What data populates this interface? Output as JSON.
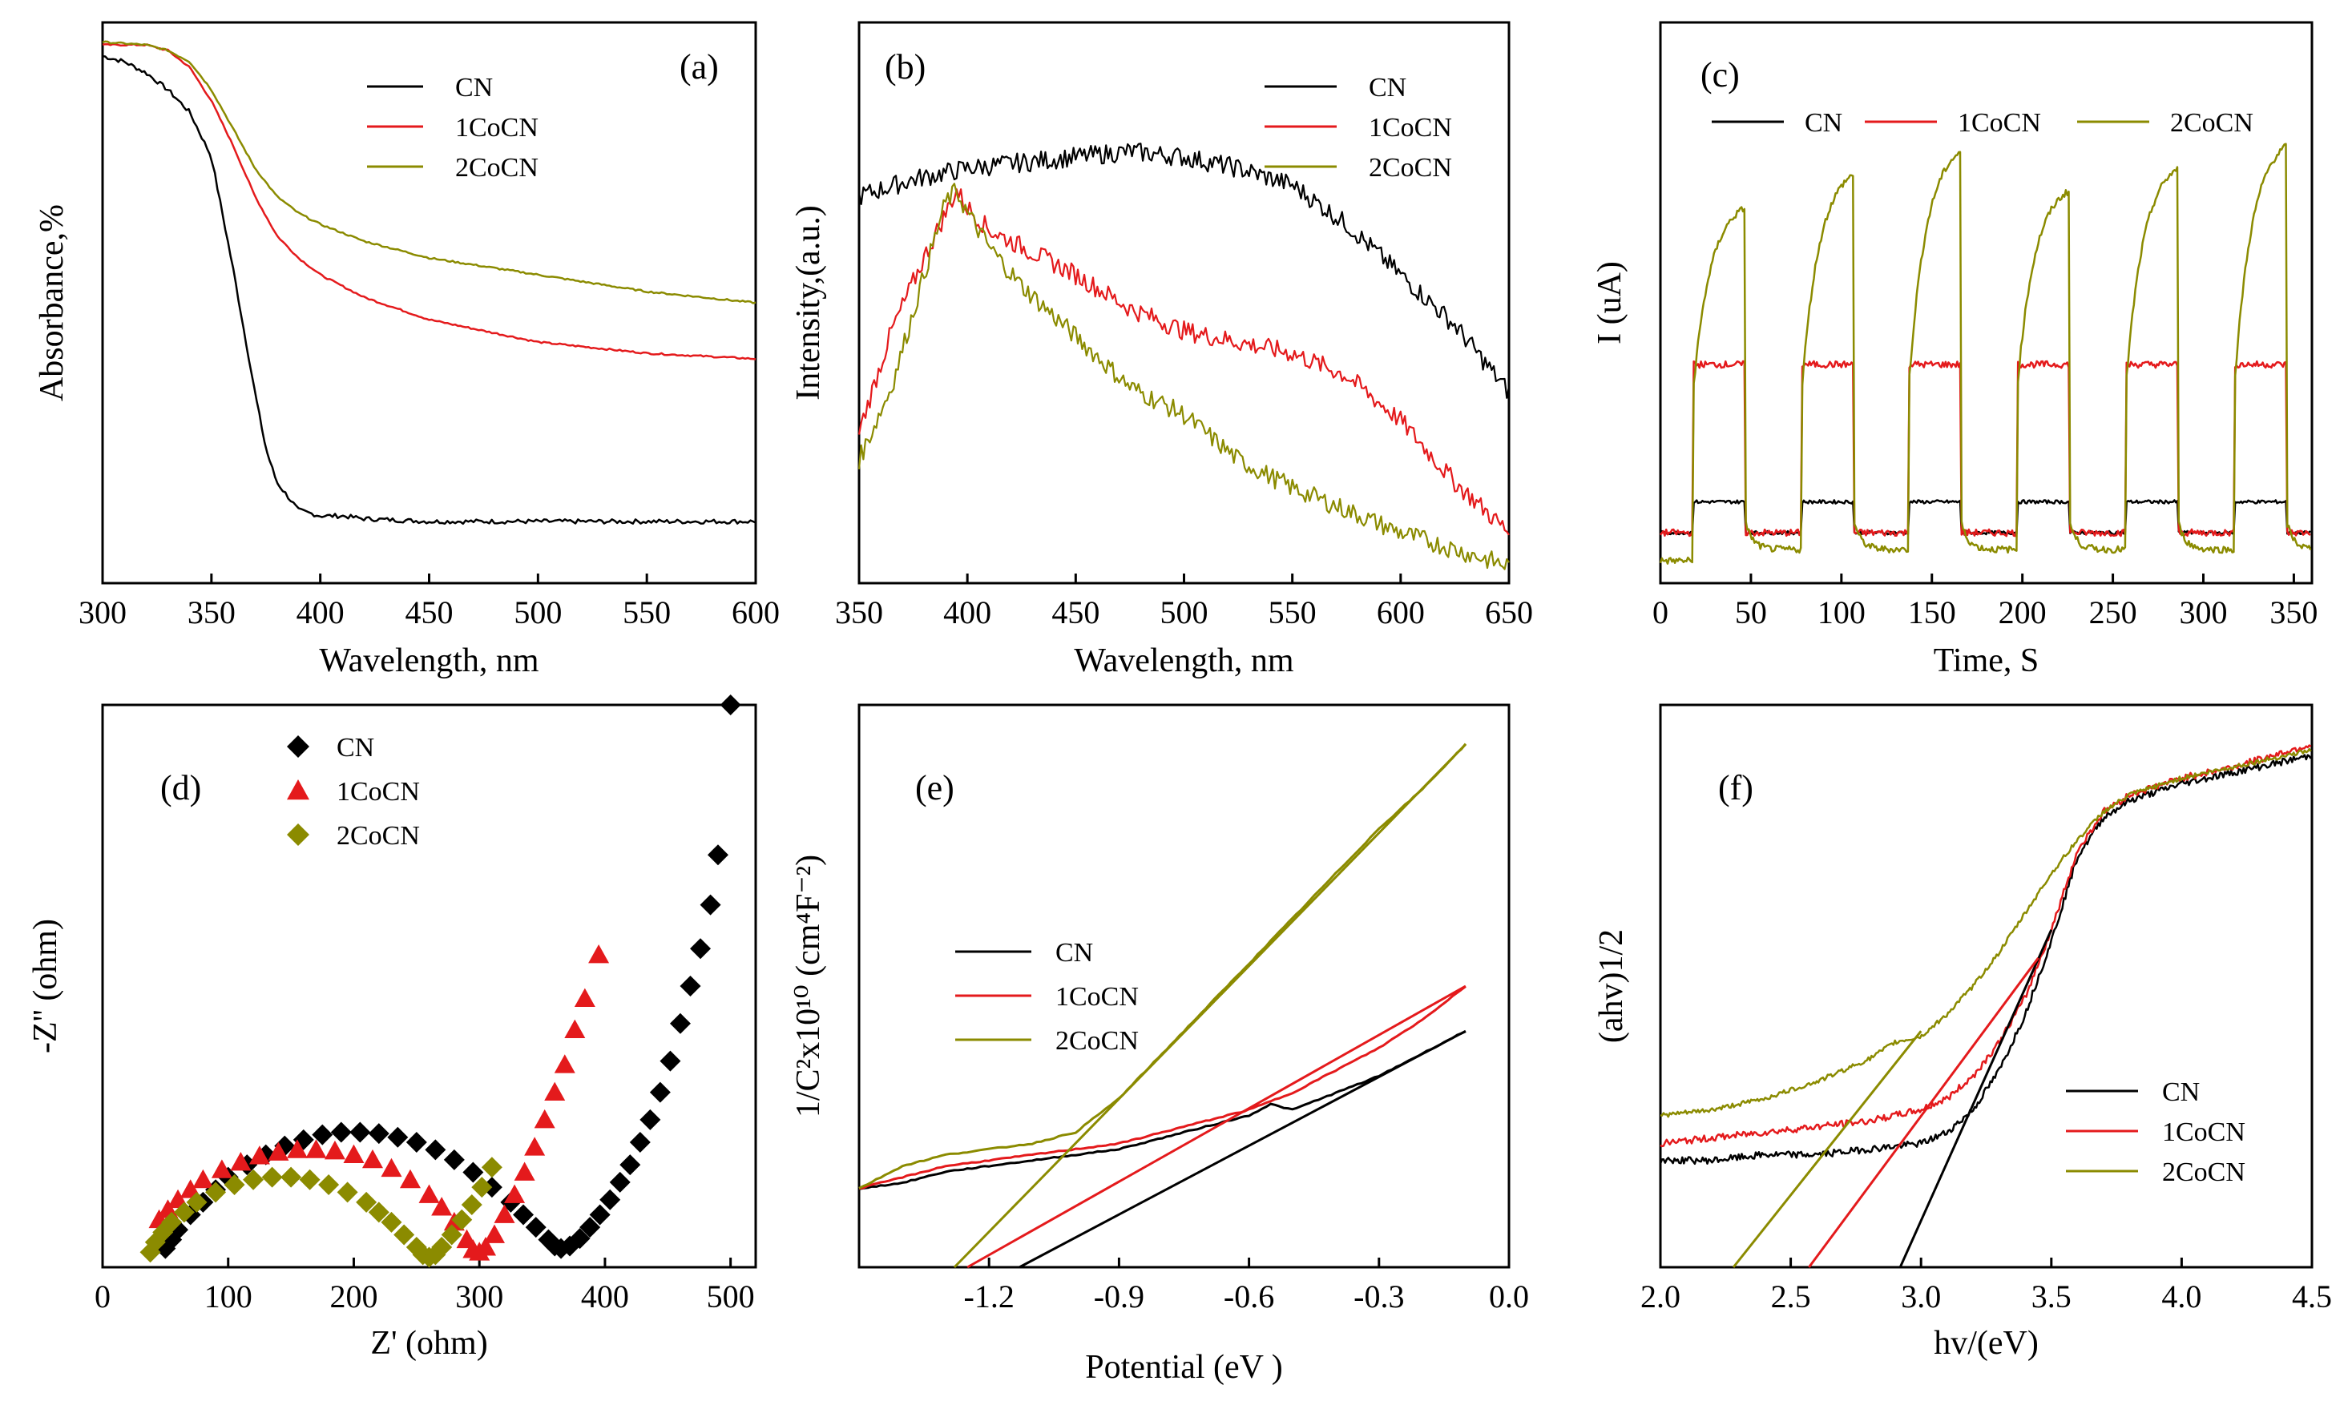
{
  "figure": {
    "description_hidden": false
  },
  "colors": {
    "CN": "#000000",
    "1CoCN": "#e41a1c",
    "2CoCN": "#8b8b00"
  },
  "chart_data": [
    {
      "panel": "(a)",
      "type": "line",
      "xlabel": "Wavelength, nm",
      "ylabel": "Absorbance,%",
      "xlim": [
        300,
        600
      ],
      "ylim": [
        0,
        1.0
      ],
      "xticks": [
        300,
        350,
        400,
        450,
        500,
        550,
        600
      ],
      "legend": [
        "CN",
        "1CoCN",
        "2CoCN"
      ],
      "legend_position": "top-right",
      "series": [
        {
          "name": "CN",
          "x": [
            300,
            310,
            320,
            330,
            340,
            350,
            355,
            360,
            365,
            370,
            375,
            380,
            390,
            400,
            410,
            420,
            450,
            500,
            550,
            600
          ],
          "y": [
            0.94,
            0.93,
            0.91,
            0.88,
            0.84,
            0.76,
            0.66,
            0.56,
            0.45,
            0.34,
            0.24,
            0.18,
            0.13,
            0.12,
            0.12,
            0.115,
            0.11,
            0.11,
            0.11,
            0.11
          ]
        },
        {
          "name": "1CoCN",
          "x": [
            300,
            320,
            330,
            340,
            350,
            360,
            370,
            380,
            390,
            400,
            420,
            450,
            500,
            550,
            600
          ],
          "y": [
            0.96,
            0.96,
            0.95,
            0.92,
            0.86,
            0.78,
            0.69,
            0.62,
            0.58,
            0.55,
            0.51,
            0.47,
            0.43,
            0.41,
            0.4
          ]
        },
        {
          "name": "2CoCN",
          "x": [
            300,
            320,
            330,
            340,
            350,
            360,
            370,
            380,
            390,
            400,
            420,
            450,
            500,
            550,
            600
          ],
          "y": [
            0.965,
            0.96,
            0.95,
            0.93,
            0.88,
            0.81,
            0.74,
            0.69,
            0.66,
            0.64,
            0.61,
            0.58,
            0.55,
            0.52,
            0.5
          ]
        }
      ]
    },
    {
      "panel": "(b)",
      "type": "line",
      "xlabel": "Wavelength, nm",
      "ylabel": "Intensity,(a.u.)",
      "xlim": [
        350,
        650
      ],
      "ylim": [
        0,
        1.0
      ],
      "xticks": [
        350,
        400,
        450,
        500,
        550,
        600,
        650
      ],
      "legend": [
        "CN",
        "1CoCN",
        "2CoCN"
      ],
      "legend_position": "top-right",
      "series": [
        {
          "name": "CN",
          "x": [
            350,
            375,
            400,
            425,
            450,
            475,
            500,
            525,
            550,
            575,
            600,
            625,
            650
          ],
          "y": [
            0.69,
            0.72,
            0.74,
            0.75,
            0.76,
            0.77,
            0.76,
            0.74,
            0.71,
            0.64,
            0.55,
            0.46,
            0.34
          ]
        },
        {
          "name": "1CoCN",
          "x": [
            350,
            365,
            380,
            390,
            395,
            400,
            410,
            425,
            450,
            475,
            500,
            525,
            550,
            575,
            600,
            625,
            650
          ],
          "y": [
            0.27,
            0.45,
            0.58,
            0.66,
            0.7,
            0.67,
            0.63,
            0.6,
            0.55,
            0.49,
            0.45,
            0.43,
            0.41,
            0.37,
            0.29,
            0.18,
            0.09
          ]
        },
        {
          "name": "2CoCN",
          "x": [
            350,
            365,
            380,
            390,
            395,
            400,
            410,
            425,
            450,
            475,
            500,
            525,
            550,
            575,
            600,
            625,
            650
          ],
          "y": [
            0.22,
            0.35,
            0.55,
            0.68,
            0.7,
            0.66,
            0.6,
            0.53,
            0.44,
            0.35,
            0.3,
            0.22,
            0.17,
            0.13,
            0.09,
            0.06,
            0.03
          ]
        }
      ]
    },
    {
      "panel": "(c)",
      "type": "line",
      "xlabel": "Time, S",
      "ylabel": "I (uA)",
      "xlim": [
        0,
        360
      ],
      "ylim": [
        0,
        1.0
      ],
      "xticks": [
        0,
        50,
        100,
        150,
        200,
        250,
        300,
        350
      ],
      "legend": [
        "CN",
        "1CoCN",
        "2CoCN"
      ],
      "legend_position": "top",
      "pulses_on": [
        [
          18,
          47
        ],
        [
          78,
          107
        ],
        [
          137,
          166
        ],
        [
          197,
          226
        ],
        [
          257,
          286
        ],
        [
          317,
          346
        ]
      ],
      "series": [
        {
          "name": "CN",
          "dark": 0.09,
          "light": 0.145
        },
        {
          "name": "1CoCN",
          "dark": 0.09,
          "light": 0.39
        },
        {
          "name": "2CoCN",
          "dark": 0.04,
          "light_peaks": [
            0.67,
            0.73,
            0.77,
            0.7,
            0.74,
            0.78
          ]
        }
      ]
    },
    {
      "panel": "(d)",
      "type": "scatter",
      "xlabel": "Z' (ohm)",
      "ylabel": "-Z'' (ohm)",
      "xlim": [
        0,
        520
      ],
      "ylim": [
        0,
        450
      ],
      "xticks": [
        0,
        100,
        200,
        300,
        400,
        500
      ],
      "legend": [
        "CN",
        "1CoCN",
        "2CoCN"
      ],
      "legend_position": "top-left",
      "series": [
        {
          "name": "CN",
          "marker": "diamond",
          "x": [
            50,
            55,
            60,
            70,
            80,
            90,
            100,
            115,
            130,
            145,
            160,
            175,
            190,
            205,
            220,
            235,
            250,
            265,
            280,
            295,
            310,
            325,
            335,
            345,
            355,
            360,
            365,
            372,
            380,
            388,
            396,
            404,
            412,
            420,
            428,
            436,
            444,
            452,
            460,
            468,
            476,
            484,
            490,
            500
          ],
          "y": [
            15,
            22,
            30,
            42,
            52,
            62,
            72,
            82,
            90,
            97,
            102,
            106,
            108,
            108,
            107,
            104,
            100,
            94,
            86,
            76,
            64,
            52,
            42,
            32,
            22,
            17,
            15,
            17,
            23,
            32,
            42,
            54,
            68,
            82,
            100,
            118,
            140,
            165,
            195,
            225,
            255,
            290,
            330,
            450
          ]
        },
        {
          "name": "1CoCN",
          "marker": "triangle",
          "x": [
            45,
            52,
            60,
            70,
            80,
            95,
            110,
            125,
            140,
            155,
            170,
            185,
            200,
            215,
            230,
            245,
            260,
            270,
            280,
            290,
            295,
            300,
            305,
            312,
            320,
            328,
            336,
            344,
            352,
            360,
            368,
            376,
            384,
            395
          ],
          "y": [
            38,
            46,
            54,
            62,
            70,
            78,
            84,
            89,
            92,
            94,
            94,
            93,
            90,
            86,
            79,
            70,
            58,
            48,
            36,
            22,
            14,
            12,
            16,
            26,
            42,
            58,
            76,
            96,
            118,
            140,
            162,
            190,
            215,
            250
          ]
        },
        {
          "name": "2CoCN",
          "marker": "diamond",
          "x": [
            38,
            42,
            48,
            55,
            65,
            75,
            90,
            105,
            120,
            135,
            150,
            165,
            180,
            195,
            210,
            220,
            230,
            240,
            250,
            255,
            260,
            265,
            270,
            278,
            286,
            294,
            302,
            310
          ],
          "y": [
            12,
            20,
            28,
            36,
            44,
            52,
            60,
            66,
            70,
            72,
            72,
            70,
            66,
            60,
            52,
            44,
            36,
            26,
            16,
            10,
            8,
            10,
            16,
            26,
            38,
            50,
            64,
            80
          ]
        }
      ]
    },
    {
      "panel": "(e)",
      "type": "line",
      "xlabel": "Potential (eV )",
      "ylabel": "1/C²x10¹⁰ (cm⁴F⁻²)",
      "xlim": [
        -1.5,
        0.0
      ],
      "ylim": [
        0,
        1.0
      ],
      "xticks": [
        -1.2,
        -0.9,
        -0.6,
        -0.3,
        0.0
      ],
      "xticklabels": [
        "-1.2",
        "-0.9",
        "-0.6",
        "-0.3",
        "0.0"
      ],
      "legend": [
        "CN",
        "1CoCN",
        "2CoCN"
      ],
      "legend_position": "center-left",
      "series": [
        {
          "name": "CN",
          "x": [
            -1.5,
            -1.4,
            -1.3,
            -1.2,
            -1.1,
            -1.0,
            -0.9,
            -0.8,
            -0.7,
            -0.6,
            -0.55,
            -0.5,
            -0.4,
            -0.3,
            -0.2,
            -0.1
          ],
          "y": [
            0.14,
            0.15,
            0.17,
            0.18,
            0.19,
            0.2,
            0.21,
            0.23,
            0.25,
            0.27,
            0.29,
            0.28,
            0.31,
            0.34,
            0.38,
            0.42
          ]
        },
        {
          "name": "1CoCN",
          "x": [
            -1.5,
            -1.4,
            -1.3,
            -1.2,
            -1.1,
            -1.0,
            -0.9,
            -0.8,
            -0.7,
            -0.6,
            -0.5,
            -0.4,
            -0.3,
            -0.2,
            -0.1
          ],
          "y": [
            0.14,
            0.16,
            0.18,
            0.19,
            0.2,
            0.21,
            0.22,
            0.24,
            0.26,
            0.28,
            0.31,
            0.35,
            0.39,
            0.44,
            0.5
          ]
        },
        {
          "name": "2CoCN",
          "x": [
            -1.5,
            -1.4,
            -1.3,
            -1.2,
            -1.1,
            -1.0,
            -0.9,
            -0.8,
            -0.7,
            -0.6,
            -0.5,
            -0.4,
            -0.3,
            -0.2,
            -0.1
          ],
          "y": [
            0.14,
            0.18,
            0.2,
            0.21,
            0.22,
            0.24,
            0.3,
            0.38,
            0.46,
            0.54,
            0.62,
            0.7,
            0.78,
            0.85,
            0.93
          ]
        }
      ],
      "tangents": [
        {
          "name": "CN",
          "x": [
            -1.13,
            -0.1
          ],
          "y": [
            0.0,
            0.42
          ]
        },
        {
          "name": "1CoCN",
          "x": [
            -1.25,
            -0.1
          ],
          "y": [
            0.0,
            0.5
          ]
        },
        {
          "name": "2CoCN",
          "x": [
            -1.28,
            -0.1
          ],
          "y": [
            0.0,
            0.93
          ]
        }
      ]
    },
    {
      "panel": "(f)",
      "type": "line",
      "xlabel": "hv/(eV)",
      "ylabel": "(ahv)¹ᐟ²",
      "ylabel_display": "(ahv)1/2",
      "xlim": [
        2.0,
        4.5
      ],
      "ylim": [
        0,
        1.0
      ],
      "xticks": [
        2.0,
        2.5,
        3.0,
        3.5,
        4.0,
        4.5
      ],
      "xticklabels": [
        "2.0",
        "2.5",
        "3.0",
        "3.5",
        "4.0",
        "4.5"
      ],
      "legend": [
        "CN",
        "1CoCN",
        "2CoCN"
      ],
      "legend_position": "bottom-right",
      "series": [
        {
          "name": "CN",
          "x": [
            2.0,
            2.2,
            2.4,
            2.6,
            2.8,
            3.0,
            3.1,
            3.2,
            3.3,
            3.4,
            3.5,
            3.6,
            3.7,
            3.8,
            4.0,
            4.2,
            4.5
          ],
          "y": [
            0.19,
            0.19,
            0.2,
            0.2,
            0.21,
            0.22,
            0.24,
            0.28,
            0.35,
            0.45,
            0.58,
            0.73,
            0.8,
            0.83,
            0.86,
            0.88,
            0.91
          ]
        },
        {
          "name": "1CoCN",
          "x": [
            2.0,
            2.2,
            2.4,
            2.6,
            2.8,
            3.0,
            3.1,
            3.2,
            3.3,
            3.4,
            3.5,
            3.6,
            3.7,
            3.8,
            4.0,
            4.2,
            4.5
          ],
          "y": [
            0.22,
            0.23,
            0.24,
            0.25,
            0.26,
            0.28,
            0.3,
            0.34,
            0.4,
            0.48,
            0.6,
            0.74,
            0.81,
            0.84,
            0.87,
            0.89,
            0.93
          ]
        },
        {
          "name": "2CoCN",
          "x": [
            2.0,
            2.2,
            2.4,
            2.6,
            2.8,
            2.9,
            3.0,
            3.1,
            3.2,
            3.3,
            3.4,
            3.5,
            3.6,
            3.7,
            3.8,
            4.0,
            4.2,
            4.5
          ],
          "y": [
            0.27,
            0.28,
            0.3,
            0.33,
            0.37,
            0.4,
            0.41,
            0.45,
            0.5,
            0.56,
            0.63,
            0.7,
            0.76,
            0.81,
            0.84,
            0.87,
            0.89,
            0.92
          ]
        }
      ],
      "tangents": [
        {
          "name": "CN",
          "x": [
            2.92,
            3.5
          ],
          "y": [
            0.0,
            0.6
          ]
        },
        {
          "name": "1CoCN",
          "x": [
            2.57,
            3.45
          ],
          "y": [
            0.0,
            0.55
          ]
        },
        {
          "name": "2CoCN",
          "x": [
            2.28,
            3.0
          ],
          "y": [
            0.0,
            0.42
          ]
        }
      ]
    }
  ]
}
